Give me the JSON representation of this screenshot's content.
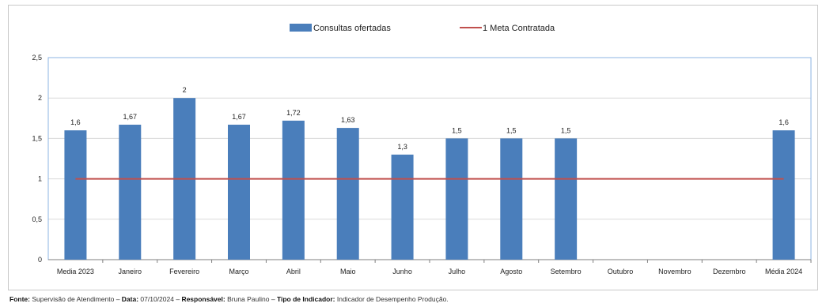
{
  "chart_data": {
    "type": "bar",
    "categories": [
      "Media 2023",
      "Janeiro",
      "Fevereiro",
      "Março",
      "Abril",
      "Maio",
      "Junho",
      "Julho",
      "Agosto",
      "Setembro",
      "Outubro",
      "Novembro",
      "Dezembro",
      "Média 2024"
    ],
    "series": [
      {
        "name": "Consultas ofertadas",
        "type": "bar",
        "color": "#4a7ebb",
        "values": [
          1.6,
          1.67,
          2,
          1.67,
          1.72,
          1.63,
          1.3,
          1.5,
          1.5,
          1.5,
          null,
          null,
          null,
          1.6
        ],
        "labels": [
          "1,6",
          "1,67",
          "2",
          "1,67",
          "1,72",
          "1,63",
          "1,3",
          "1,5",
          "1,5",
          "1,5",
          null,
          null,
          null,
          "1,6"
        ]
      },
      {
        "name": "1 Meta Contratada",
        "type": "line",
        "color": "#c0504d",
        "values": [
          1,
          1,
          1,
          1,
          1,
          1,
          1,
          1,
          1,
          1,
          1,
          1,
          1,
          1
        ]
      }
    ],
    "ylim": [
      0,
      2.5
    ],
    "yticks": [
      0,
      0.5,
      1,
      1.5,
      2,
      2.5
    ],
    "ytick_labels": [
      "0",
      "0,5",
      "1",
      "1,5",
      "2",
      "2,5"
    ],
    "grid": true,
    "legend_position": "top-center",
    "title": "",
    "xlabel": "",
    "ylabel": ""
  },
  "footer": {
    "source_label": "Fonte:",
    "source_value": "Supervisão de Atendimento",
    "date_label": "Data:",
    "date_value": "07/10/2024",
    "responsible_label": "Responsável:",
    "responsible_value": "Bruna Paulino",
    "indicator_label": "Tipo de Indicador:",
    "indicator_value": "Indicador de Desempenho Produção."
  }
}
